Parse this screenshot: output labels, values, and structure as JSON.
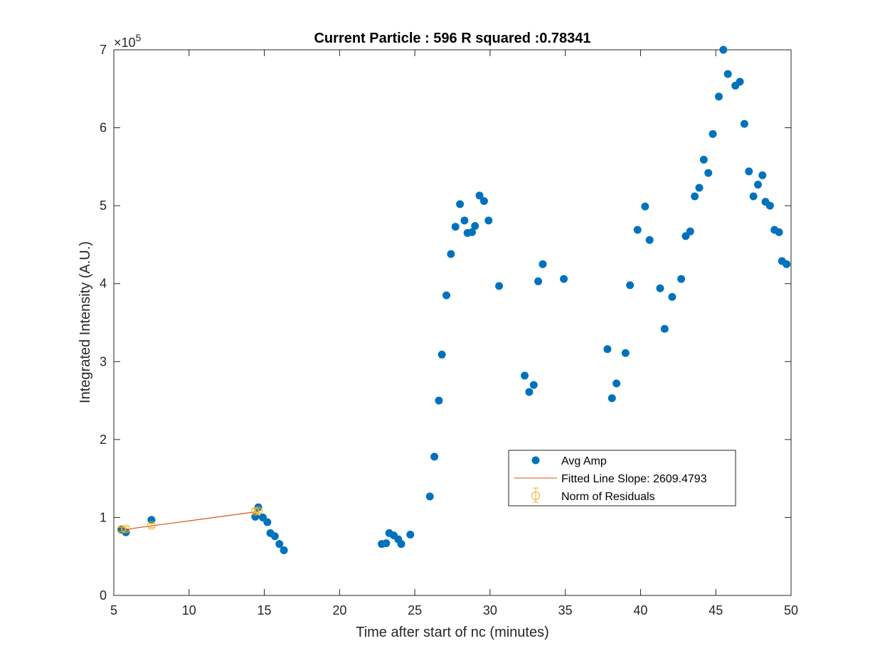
{
  "chart_data": {
    "type": "scatter",
    "title": "Current Particle : 596   R squared :0.78341",
    "xlabel": "Time after start of nc (minutes)",
    "ylabel": "Integrated Intensity (A.U.)",
    "y_exponent_label": "×10",
    "y_exponent_power": "5",
    "xlim": [
      5,
      50
    ],
    "ylim": [
      0,
      700000
    ],
    "xticks": [
      5,
      10,
      15,
      20,
      25,
      30,
      35,
      40,
      45,
      50
    ],
    "yticks": [
      0,
      100000,
      200000,
      300000,
      400000,
      500000,
      600000,
      700000
    ],
    "ytick_labels": [
      "0",
      "1",
      "2",
      "3",
      "4",
      "5",
      "6",
      "7"
    ],
    "grid": false,
    "legend_position": "lower-right",
    "colors": {
      "points": "#0072BD",
      "fit": "#D95319",
      "residuals": "#EDB120",
      "axes": "#262626"
    },
    "series": [
      {
        "name": "Avg Amp",
        "marker": "filled-circle",
        "x": [
          5.5,
          5.8,
          7.5,
          14.4,
          14.6,
          14.9,
          15.2,
          15.4,
          15.7,
          16.0,
          16.3,
          22.8,
          23.1,
          23.3,
          23.6,
          23.9,
          24.1,
          24.7,
          26.0,
          26.3,
          26.6,
          26.8,
          27.1,
          27.4,
          27.7,
          28.0,
          28.3,
          28.5,
          28.8,
          29.0,
          29.3,
          29.6,
          29.9,
          30.6,
          32.3,
          32.6,
          32.9,
          33.2,
          33.5,
          34.9,
          37.8,
          38.1,
          38.4,
          39.0,
          39.3,
          39.8,
          40.3,
          40.6,
          41.3,
          41.6,
          42.1,
          42.7,
          43.0,
          43.3,
          43.6,
          43.9,
          44.2,
          44.5,
          44.8,
          45.2,
          45.5,
          45.8,
          46.3,
          46.6,
          46.9,
          47.2,
          47.5,
          47.8,
          48.1,
          48.3,
          48.6,
          48.9,
          49.2,
          49.4,
          49.7
        ],
        "y": [
          84000,
          81000,
          97000,
          101000,
          113000,
          100000,
          94000,
          80000,
          76000,
          66000,
          58000,
          66000,
          67000,
          80000,
          77000,
          72000,
          66000,
          78000,
          127000,
          178000,
          250000,
          309000,
          385000,
          438000,
          473000,
          502000,
          481000,
          465000,
          466000,
          474000,
          513000,
          506000,
          481000,
          397000,
          282000,
          261000,
          270000,
          403000,
          425000,
          406000,
          316000,
          253000,
          272000,
          311000,
          398000,
          469000,
          499000,
          456000,
          394000,
          342000,
          383000,
          406000,
          461000,
          467000,
          512000,
          523000,
          559000,
          542000,
          592000,
          640000,
          700000,
          669000,
          654000,
          659000,
          605000,
          544000,
          512000,
          527000,
          539000,
          505000,
          500000,
          469000,
          466000,
          429000,
          425000
        ]
      },
      {
        "name": "Fitted Line Slope: 2609.4793",
        "marker": "line",
        "x": [
          5.5,
          14.6
        ],
        "y": [
          84000,
          107700
        ]
      },
      {
        "name": "Norm of Residuals",
        "marker": "open-circle-errorbar",
        "x": [
          5.5,
          5.8,
          7.5,
          14.4,
          14.6
        ],
        "y": [
          84500,
          85400,
          89800,
          108000,
          108500
        ]
      }
    ]
  }
}
